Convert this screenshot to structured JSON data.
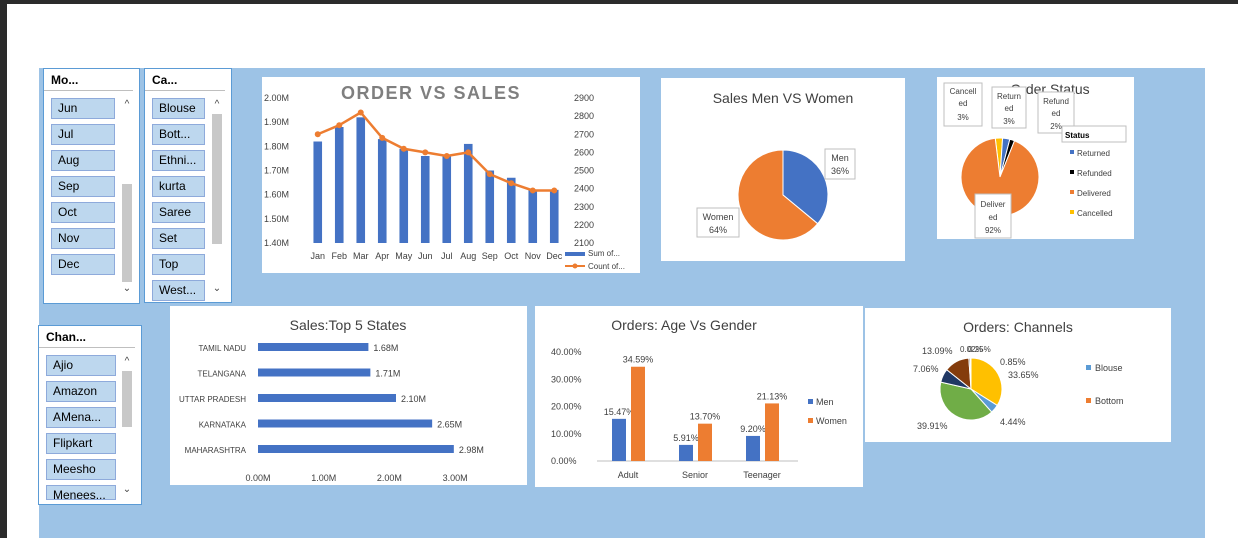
{
  "slicers": {
    "month": {
      "title": "Mo...",
      "items": [
        "Jun",
        "Jul",
        "Aug",
        "Sep",
        "Oct",
        "Nov",
        "Dec"
      ]
    },
    "category": {
      "title": "Ca...",
      "items": [
        "Blouse",
        "Bott...",
        "Ethni...",
        "kurta",
        "Saree",
        "Set",
        "Top",
        "West..."
      ]
    },
    "channel": {
      "title": "Chan...",
      "items": [
        "Ajio",
        "Amazon",
        "AMena...",
        "Flipkart",
        "Meesho",
        "Menees..."
      ]
    }
  },
  "colors": {
    "blue": "#4472c4",
    "orange": "#ed7d31",
    "gold": "#ffc000",
    "dark": "#203864",
    "green": "#70ad47",
    "brown": "#843c0c",
    "light_blue": "#5b9bd5"
  },
  "chart_data": [
    {
      "type": "bar+line",
      "title": "ORDER VS SALES",
      "categories": [
        "Jan",
        "Feb",
        "Mar",
        "Apr",
        "May",
        "Jun",
        "Jul",
        "Aug",
        "Sep",
        "Oct",
        "Nov",
        "Dec"
      ],
      "series": [
        {
          "name": "Sum of...",
          "kind": "bar",
          "axis": "left",
          "values": [
            1820000,
            1880000,
            1920000,
            1830000,
            1790000,
            1760000,
            1760000,
            1810000,
            1700000,
            1670000,
            1620000,
            1620000
          ]
        },
        {
          "name": "Count of...",
          "kind": "line",
          "axis": "right",
          "values": [
            2700,
            2750,
            2820,
            2680,
            2620,
            2600,
            2580,
            2600,
            2480,
            2430,
            2390,
            2390
          ]
        }
      ],
      "left_ticks": [
        "2.00M",
        "1.90M",
        "1.80M",
        "1.70M",
        "1.60M",
        "1.50M",
        "1.40M"
      ],
      "ylim_left": [
        1400000,
        2000000
      ],
      "right_ticks": [
        "2900",
        "2800",
        "2700",
        "2600",
        "2500",
        "2400",
        "2300",
        "2200",
        "2100"
      ],
      "ylim_right": [
        2100,
        2900
      ]
    },
    {
      "type": "pie",
      "title": "Sales Men VS Women",
      "slices": [
        {
          "name": "Men",
          "label": "36%",
          "value": 36
        },
        {
          "name": "Women",
          "label": "64%",
          "value": 64
        }
      ]
    },
    {
      "type": "pie",
      "title": "Order Status",
      "legend_title": "Status",
      "legend": [
        "Returned",
        "Refunded",
        "Delivered",
        "Cancelled"
      ],
      "slices": [
        {
          "name": "Delivered",
          "label": "Deliver ed 92%",
          "value": 92
        },
        {
          "name": "Cancelled",
          "label": "Cancell ed 3%",
          "value": 3
        },
        {
          "name": "Returned",
          "label": "Return ed 3%",
          "value": 3
        },
        {
          "name": "Refunded",
          "label": "Refund ed 2%",
          "value": 2
        }
      ]
    },
    {
      "type": "bar",
      "orientation": "horizontal",
      "title": "Sales:Top 5 States",
      "categories": [
        "TAMIL NADU",
        "TELANGANA",
        "UTTAR PRADESH",
        "KARNATAKA",
        "MAHARASHTRA"
      ],
      "values": [
        1.68,
        1.71,
        2.1,
        2.65,
        2.98
      ],
      "value_labels": [
        "1.68M",
        "1.71M",
        "2.10M",
        "2.65M",
        "2.98M"
      ],
      "x_ticks": [
        "0.00M",
        "1.00M",
        "2.00M",
        "3.00M"
      ],
      "xlim": [
        0,
        3.5
      ]
    },
    {
      "type": "bar",
      "title": "Orders: Age Vs Gender",
      "categories": [
        "Adult",
        "Senior",
        "Teenager"
      ],
      "series": [
        {
          "name": "Men",
          "values": [
            15.47,
            5.91,
            9.2
          ],
          "labels": [
            "15.47%",
            "5.91%",
            "9.20%"
          ]
        },
        {
          "name": "Women",
          "values": [
            34.59,
            13.7,
            21.13
          ],
          "labels": [
            "34.59%",
            "13.70%",
            "21.13%"
          ]
        }
      ],
      "y_ticks": [
        "40.00%",
        "30.00%",
        "20.00%",
        "10.00%",
        "0.00%"
      ],
      "ylim": [
        0,
        40
      ]
    },
    {
      "type": "pie",
      "title": "Orders: Channels",
      "legend": [
        "Blouse",
        "Bottom"
      ],
      "slices": [
        {
          "label": "33.65%",
          "value": 33.65
        },
        {
          "label": "4.44%",
          "value": 4.44
        },
        {
          "label": "39.91%",
          "value": 39.91
        },
        {
          "label": "7.06%",
          "value": 7.06
        },
        {
          "label": "13.09%",
          "value": 13.09
        },
        {
          "label": "0.85%",
          "value": 0.85
        },
        {
          "label": "0.25%",
          "value": 0.25
        },
        {
          "label": "0.02%",
          "value": 0.02
        }
      ]
    }
  ]
}
